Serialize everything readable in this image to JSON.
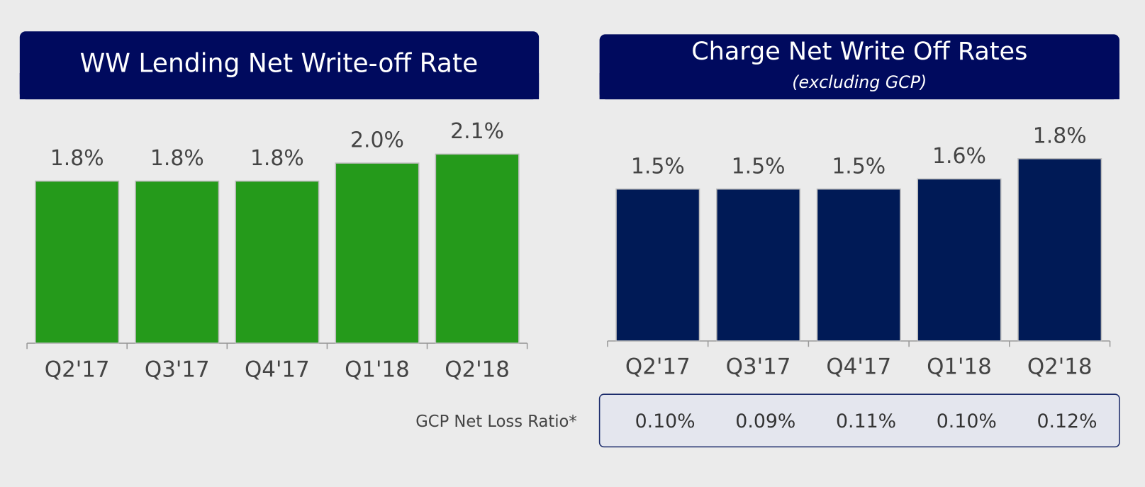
{
  "chart_data": [
    {
      "type": "bar",
      "title": "WW Lending Net Write-off Rate",
      "categories": [
        "Q2'17",
        "Q3'17",
        "Q4'17",
        "Q1'18",
        "Q2'18"
      ],
      "values": [
        1.8,
        1.8,
        1.8,
        2.0,
        2.1
      ],
      "value_labels": [
        "1.8%",
        "1.8%",
        "1.8%",
        "2.0%",
        "2.1%"
      ],
      "color": "#259a1b"
    },
    {
      "type": "bar",
      "title": "Charge Net Write Off Rates",
      "subtitle": "(excluding GCP)",
      "categories": [
        "Q2'17",
        "Q3'17",
        "Q4'17",
        "Q1'18",
        "Q2'18"
      ],
      "values": [
        1.5,
        1.5,
        1.5,
        1.6,
        1.8
      ],
      "value_labels": [
        "1.5%",
        "1.5%",
        "1.5%",
        "1.6%",
        "1.8%"
      ],
      "color": "#001a56"
    }
  ],
  "gcp_table": {
    "label": "GCP Net Loss Ratio*",
    "values": [
      "0.10%",
      "0.09%",
      "0.11%",
      "0.10%",
      "0.12%"
    ]
  }
}
